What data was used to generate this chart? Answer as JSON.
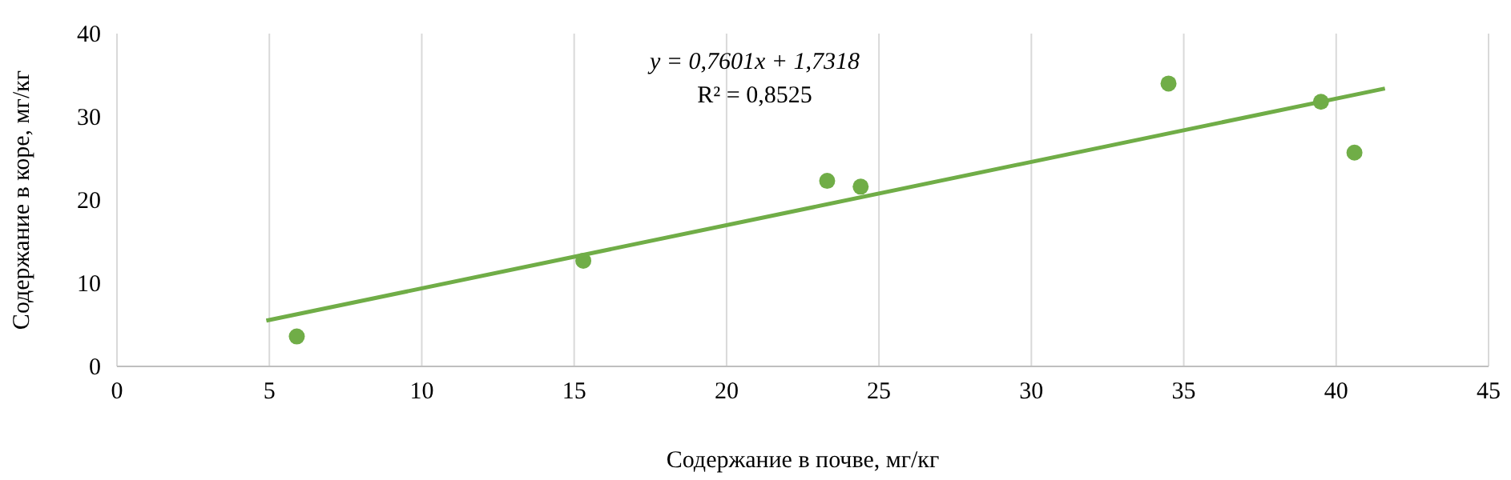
{
  "chart_data": {
    "type": "scatter",
    "xlabel": "Содержание в почве, мг/кг",
    "ylabel": "Содержание в коре, мг/кг",
    "annotations": [
      "y = 0,7601x + 1,7318",
      "R² = 0,8525"
    ],
    "series": [
      {
        "color": "#70ad47",
        "marker": "circle",
        "x": [
          5.9,
          15.3,
          23.3,
          24.4,
          34.5,
          39.5,
          40.6
        ],
        "values": [
          3.6,
          12.7,
          22.3,
          21.6,
          34.0,
          31.8,
          25.7
        ]
      },
      {
        "type": "line",
        "color": "#70ad47",
        "marker": "none",
        "x": [
          4.9,
          41.6
        ],
        "values": [
          5.5,
          33.4
        ]
      }
    ],
    "xlim": [
      0,
      45
    ],
    "xticks": [
      0,
      5,
      10,
      15,
      20,
      25,
      30,
      35,
      40,
      45
    ],
    "ylim": [
      0,
      40
    ],
    "yticks": [
      0,
      10,
      20,
      30,
      40
    ],
    "grid": "x"
  }
}
